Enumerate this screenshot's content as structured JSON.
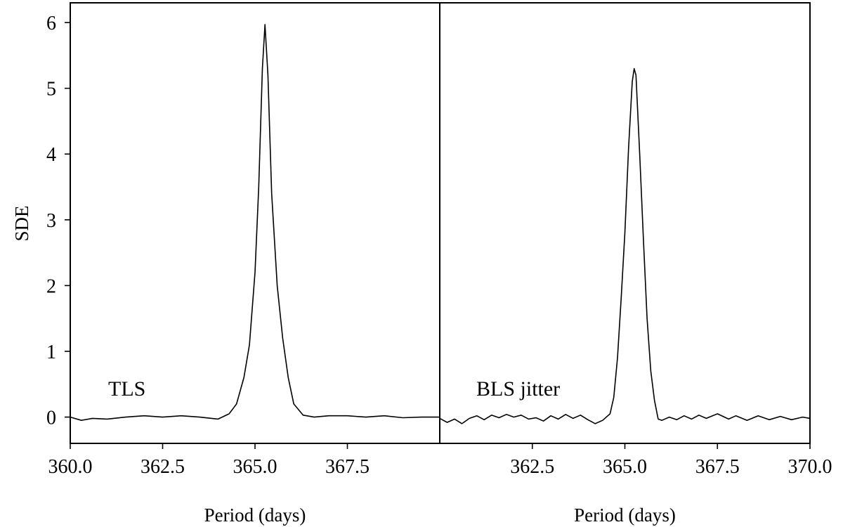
{
  "chart_data": [
    {
      "type": "line",
      "annotation": "TLS",
      "xlabel": "Period (days)",
      "ylabel": "SDE",
      "xlim": [
        360.0,
        370.0
      ],
      "ylim": [
        -0.4,
        6.3
      ],
      "xticks": [
        "360.0",
        "362.5",
        "365.0",
        "367.5"
      ],
      "xtick_values": [
        360.0,
        362.5,
        365.0,
        367.5
      ],
      "yticks": [
        "0",
        "1",
        "2",
        "3",
        "4",
        "5",
        "6"
      ],
      "ytick_values": [
        0,
        1,
        2,
        3,
        4,
        5,
        6
      ],
      "grid": false,
      "color": "#000000",
      "x": [
        360.0,
        360.3,
        360.6,
        361.0,
        361.5,
        362.0,
        362.5,
        363.0,
        363.5,
        364.0,
        364.3,
        364.5,
        364.7,
        364.85,
        365.0,
        365.1,
        365.2,
        365.27,
        365.35,
        365.45,
        365.6,
        365.75,
        365.9,
        366.05,
        366.3,
        366.6,
        367.0,
        367.5,
        368.0,
        368.5,
        369.0,
        369.5,
        370.0
      ],
      "y": [
        0.0,
        -0.05,
        -0.02,
        -0.03,
        0.0,
        0.02,
        0.0,
        0.02,
        0.0,
        -0.03,
        0.05,
        0.2,
        0.6,
        1.1,
        2.2,
        3.5,
        5.3,
        5.97,
        5.2,
        3.4,
        2.0,
        1.2,
        0.6,
        0.2,
        0.03,
        0.0,
        0.02,
        0.02,
        0.0,
        0.02,
        -0.01,
        0.0,
        0.0
      ]
    },
    {
      "type": "line",
      "annotation": "BLS jitter",
      "xlabel": "Period (days)",
      "ylabel": "",
      "xlim": [
        360.0,
        370.0
      ],
      "ylim": [
        -0.4,
        6.3
      ],
      "xticks": [
        "362.5",
        "365.0",
        "367.5",
        "370.0"
      ],
      "xtick_values": [
        362.5,
        365.0,
        367.5,
        370.0
      ],
      "grid": false,
      "color": "#000000",
      "x": [
        360.0,
        360.2,
        360.4,
        360.6,
        360.8,
        361.0,
        361.2,
        361.4,
        361.6,
        361.8,
        362.0,
        362.2,
        362.4,
        362.6,
        362.8,
        363.0,
        363.2,
        363.4,
        363.6,
        363.8,
        364.0,
        364.2,
        364.4,
        364.6,
        364.7,
        364.8,
        364.9,
        365.0,
        365.1,
        365.2,
        365.25,
        365.3,
        365.4,
        365.5,
        365.6,
        365.7,
        365.8,
        365.9,
        366.0,
        366.2,
        366.4,
        366.6,
        366.8,
        367.0,
        367.2,
        367.5,
        367.8,
        368.0,
        368.3,
        368.6,
        368.9,
        369.2,
        369.5,
        369.8,
        370.0
      ],
      "y": [
        -0.02,
        -0.08,
        -0.03,
        -0.1,
        -0.02,
        0.02,
        -0.04,
        0.03,
        -0.01,
        0.04,
        0.0,
        0.03,
        -0.03,
        -0.01,
        -0.06,
        0.02,
        -0.03,
        0.04,
        -0.02,
        0.03,
        -0.04,
        -0.1,
        -0.05,
        0.05,
        0.3,
        0.9,
        1.8,
        2.8,
        4.1,
        5.1,
        5.3,
        5.2,
        4.0,
        2.7,
        1.5,
        0.7,
        0.25,
        -0.03,
        -0.05,
        0.0,
        -0.04,
        0.02,
        -0.03,
        0.03,
        -0.02,
        0.05,
        -0.03,
        0.02,
        -0.05,
        0.02,
        -0.04,
        0.01,
        -0.04,
        0.0,
        -0.02
      ]
    }
  ]
}
